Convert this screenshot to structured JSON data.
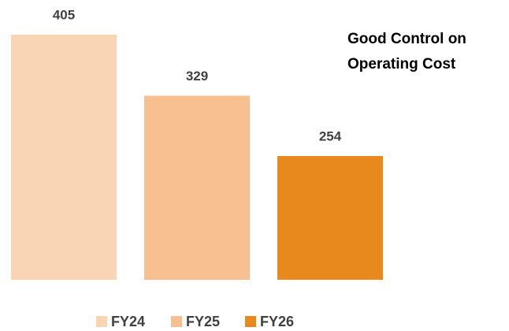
{
  "chart_data": {
    "type": "bar",
    "title": "Good Control on Operating Cost",
    "categories": [
      "FY24",
      "FY25",
      "FY26"
    ],
    "values": [
      405,
      329,
      254
    ],
    "colors": [
      "#fad5b5",
      "#f8bf90",
      "#e8891e"
    ],
    "ylim": [
      100,
      405
    ]
  }
}
